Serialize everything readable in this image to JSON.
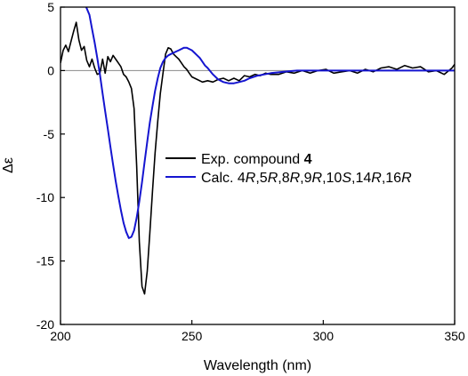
{
  "chart_data": {
    "type": "line",
    "xlabel": "Wavelength (nm)",
    "ylabel": "Δε",
    "xlim": [
      200,
      350
    ],
    "ylim": [
      -20,
      5
    ],
    "xticks": [
      200,
      250,
      300,
      350
    ],
    "yticks": [
      5,
      0,
      -5,
      -10,
      -15,
      -20
    ],
    "zero_line": true,
    "grid": false,
    "legend_position": "center-right",
    "legend": [
      {
        "parts": [
          {
            "text": "Exp. compound ",
            "bold": false,
            "italic": false
          },
          {
            "text": "4",
            "bold": true,
            "italic": false
          }
        ]
      },
      {
        "parts": [
          {
            "text": "Calc. 4",
            "italic": false
          },
          {
            "text": "R",
            "italic": true
          },
          {
            "text": ",5",
            "italic": false
          },
          {
            "text": "R",
            "italic": true
          },
          {
            "text": ",8",
            "italic": false
          },
          {
            "text": "R",
            "italic": true
          },
          {
            "text": ",9",
            "italic": false
          },
          {
            "text": "R",
            "italic": true
          },
          {
            "text": ",10",
            "italic": false
          },
          {
            "text": "S",
            "italic": true
          },
          {
            "text": ",14",
            "italic": false
          },
          {
            "text": "R",
            "italic": true
          },
          {
            "text": ",16",
            "italic": false
          },
          {
            "text": "R",
            "italic": true
          }
        ]
      }
    ],
    "series": [
      {
        "color": "#000000",
        "x": [
          200,
          201,
          202,
          203,
          204,
          205,
          206,
          207,
          208,
          209,
          210,
          211,
          212,
          213,
          214,
          215,
          216,
          217,
          218,
          219,
          220,
          221,
          222,
          223,
          224,
          225,
          226,
          227,
          228,
          229,
          230,
          231,
          232,
          233,
          234,
          235,
          236,
          237,
          238,
          239,
          240,
          241,
          242,
          243,
          244,
          245,
          246,
          247,
          248,
          249,
          250,
          252,
          254,
          256,
          258,
          260,
          262,
          264,
          266,
          268,
          270,
          272,
          274,
          276,
          278,
          280,
          283,
          286,
          289,
          292,
          295,
          298,
          301,
          304,
          307,
          310,
          313,
          316,
          319,
          322,
          325,
          328,
          331,
          334,
          337,
          340,
          343,
          346,
          349,
          350
        ],
        "y": [
          0.6,
          1.6,
          2.0,
          1.5,
          2.3,
          3.1,
          3.8,
          2.4,
          1.6,
          1.9,
          0.8,
          0.3,
          0.9,
          0.2,
          -0.3,
          -0.2,
          0.9,
          -0.2,
          1.1,
          0.7,
          1.2,
          0.9,
          0.6,
          0.3,
          -0.3,
          -0.5,
          -0.9,
          -1.4,
          -3.0,
          -7.5,
          -13.5,
          -17.0,
          -17.6,
          -15.8,
          -12.8,
          -9.5,
          -6.5,
          -4.0,
          -1.8,
          -0.2,
          1.3,
          1.8,
          1.7,
          1.3,
          1.1,
          0.9,
          0.6,
          0.3,
          0.1,
          -0.2,
          -0.5,
          -0.7,
          -0.9,
          -0.8,
          -0.9,
          -0.7,
          -0.6,
          -0.8,
          -0.6,
          -0.8,
          -0.4,
          -0.5,
          -0.3,
          -0.4,
          -0.2,
          -0.3,
          -0.3,
          -0.1,
          -0.2,
          0.0,
          -0.2,
          0.0,
          0.1,
          -0.2,
          -0.1,
          0.0,
          -0.2,
          0.1,
          -0.1,
          0.2,
          0.3,
          0.1,
          0.4,
          0.2,
          0.3,
          -0.1,
          0.0,
          -0.3,
          0.2,
          0.5
        ]
      },
      {
        "color": "#1515d0",
        "x": [
          209.8,
          211,
          212,
          213,
          214,
          215,
          216,
          217,
          218,
          219,
          220,
          221,
          222,
          223,
          224,
          225,
          226,
          227,
          228,
          229,
          230,
          231,
          232,
          233,
          234,
          235,
          236,
          237,
          238,
          239,
          240,
          241,
          242,
          243,
          244,
          245,
          246,
          247,
          248,
          249,
          250,
          251,
          252,
          253,
          254,
          255,
          256,
          258,
          260,
          262,
          264,
          266,
          268,
          270,
          272,
          275,
          280,
          285,
          290,
          300,
          310,
          320,
          330,
          340,
          350
        ],
        "y": [
          5.0,
          4.4,
          3.3,
          2.2,
          1.0,
          -0.3,
          -1.8,
          -3.2,
          -4.6,
          -6.0,
          -7.4,
          -8.7,
          -9.9,
          -11.0,
          -12.0,
          -12.7,
          -13.2,
          -13.1,
          -12.6,
          -11.6,
          -10.3,
          -8.8,
          -7.2,
          -5.6,
          -4.1,
          -2.8,
          -1.6,
          -0.6,
          0.2,
          0.7,
          1.0,
          1.2,
          1.3,
          1.4,
          1.5,
          1.6,
          1.7,
          1.8,
          1.8,
          1.7,
          1.6,
          1.4,
          1.2,
          1.0,
          0.7,
          0.4,
          0.2,
          -0.3,
          -0.7,
          -0.9,
          -1.0,
          -1.0,
          -0.9,
          -0.8,
          -0.6,
          -0.4,
          -0.2,
          -0.1,
          0.0,
          0.0,
          0.0,
          0.0,
          0.0,
          0.0,
          0.0
        ]
      }
    ]
  }
}
